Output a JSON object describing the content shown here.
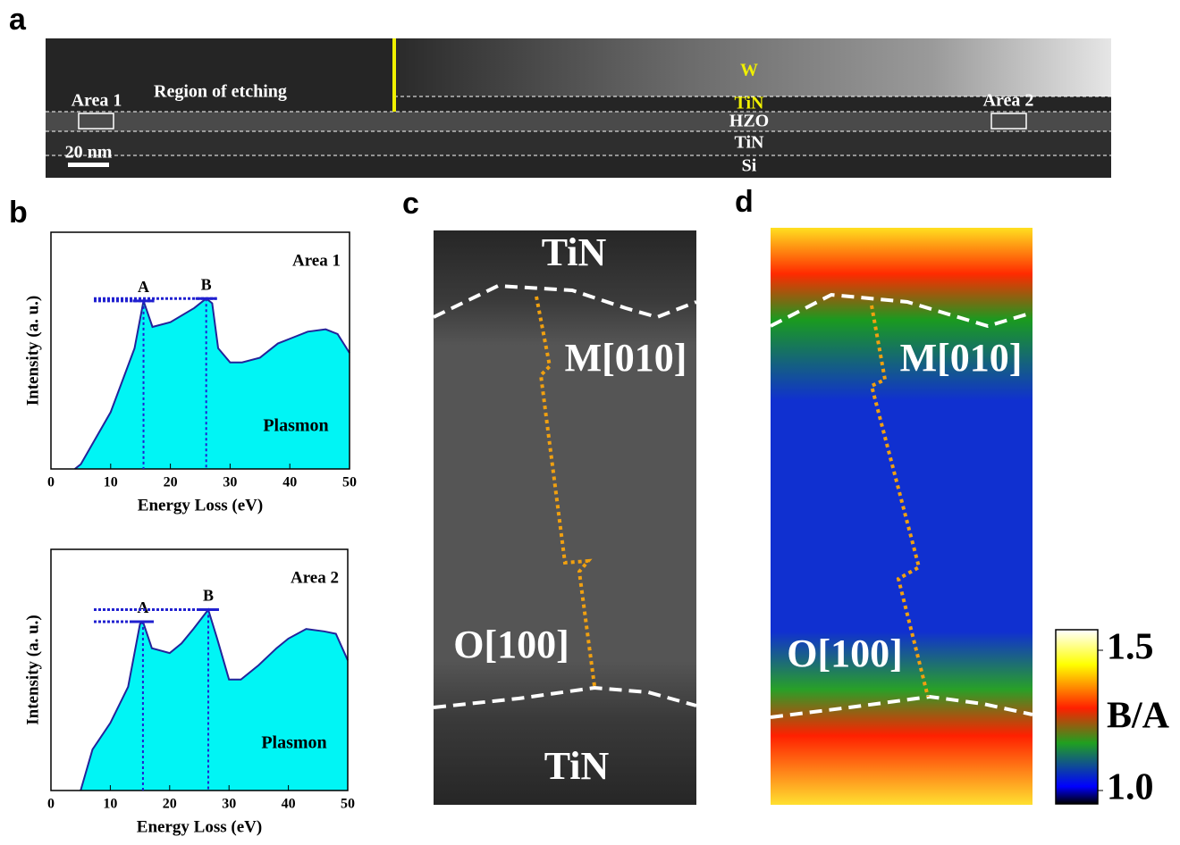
{
  "panel_labels": [
    "a",
    "b",
    "c",
    "d"
  ],
  "panel_a": {
    "labels": {
      "etching": "Region of etching",
      "area1": "Area 1",
      "area2": "Area 2",
      "scale_bar": "20 nm"
    },
    "layers": [
      "W",
      "TiN",
      "HZO",
      "TiN",
      "Si"
    ]
  },
  "panel_c": {
    "labels": [
      "TiN",
      "M[010]",
      "O[100]",
      "TiN"
    ]
  },
  "panel_d": {
    "labels": [
      "M[010]",
      "O[100]"
    ],
    "colorbar": {
      "label": "B/A",
      "range": [
        1,
        1.5
      ],
      "ticks": [
        1.5,
        {
          "value": 1,
          "label": "1.0"
        }
      ]
    }
  },
  "chart_data": [
    {
      "type": "area",
      "title": "Area 1",
      "xlabel": "Energy Loss (eV)",
      "ylabel": "Intensity (a. u.)",
      "annotation": "Plasmon",
      "x": [
        4,
        5,
        10,
        14,
        15.5,
        17,
        20,
        24,
        26,
        27,
        28,
        30,
        32,
        35,
        38,
        40,
        43,
        46,
        48,
        50
      ],
      "values": [
        0,
        2,
        24,
        51,
        71,
        60,
        62,
        68,
        72,
        70,
        51,
        45,
        45,
        47,
        53,
        55,
        58,
        59,
        57,
        49
      ],
      "markers": [
        {
          "label": "A",
          "x": 15.5
        },
        {
          "label": "B",
          "x": 26
        }
      ],
      "xlim": [
        0,
        50
      ],
      "xticks": [
        0,
        10,
        20,
        30,
        40,
        50
      ],
      "ylim": [
        0,
        100
      ],
      "color": "#00f5f5",
      "line_color": "#23239a"
    },
    {
      "type": "area",
      "title": "Area 2",
      "xlabel": "Energy Loss (eV)",
      "ylabel": "Intensity (a. u.)",
      "annotation": "Plasmon",
      "x": [
        5,
        7,
        10,
        13,
        15,
        15.5,
        17,
        20,
        22,
        24,
        26.5,
        28,
        30,
        32,
        35,
        38,
        40,
        43,
        46,
        48,
        50
      ],
      "values": [
        0,
        17,
        28,
        43,
        69,
        70,
        59,
        57,
        61,
        67,
        75,
        63,
        46,
        46,
        52,
        59,
        63,
        67,
        66,
        65,
        54
      ],
      "markers": [
        {
          "label": "A",
          "x": 15.5
        },
        {
          "label": "B",
          "x": 26.5
        }
      ],
      "xlim": [
        0,
        50
      ],
      "xticks": [
        0,
        10,
        20,
        30,
        40,
        50
      ],
      "ylim": [
        0,
        100
      ],
      "color": "#00f5f5",
      "line_color": "#23239a"
    }
  ]
}
